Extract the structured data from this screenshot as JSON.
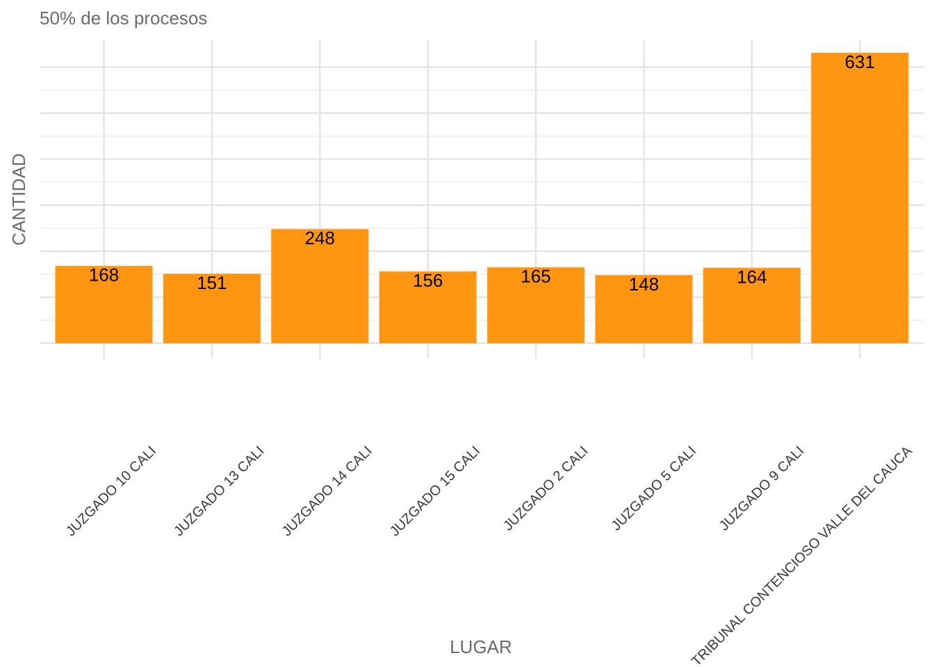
{
  "subtitle": "50% de los procesos",
  "chart_data": {
    "type": "bar",
    "title": "",
    "subtitle": "50% de los procesos",
    "xlabel": "LUGAR",
    "ylabel": "CANTIDAD",
    "categories": [
      "JUZGADO 10 CALI",
      "JUZGADO 13 CALI",
      "JUZGADO 14 CALI",
      "JUZGADO 15 CALI",
      "JUZGADO 2 CALI",
      "JUZGADO 5 CALI",
      "JUZGADO 9 CALI",
      "TRIBUNAL CONTENCIOSO VALLE DEL CAUCA"
    ],
    "values": [
      168,
      151,
      248,
      156,
      165,
      148,
      164,
      631
    ],
    "data_labels": [
      "168",
      "151",
      "248",
      "156",
      "165",
      "148",
      "164",
      "631"
    ],
    "ylim": [
      0,
      660
    ],
    "y_tick_labels_shown": false,
    "grid": true,
    "bar_color": "#FF9510",
    "label_color": "#000000"
  }
}
